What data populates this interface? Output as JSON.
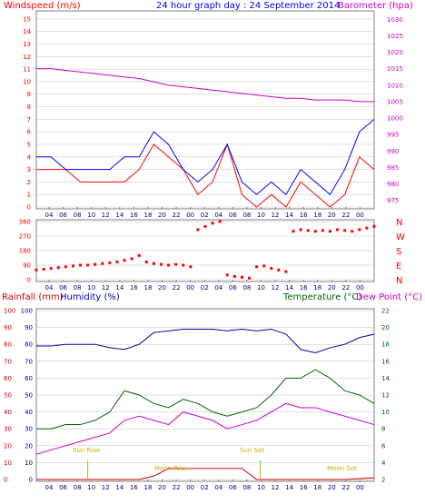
{
  "colors": {
    "wind": "#ff0000",
    "gust_avg": "#0000ff",
    "barometer": "#cc00cc",
    "direction": "#ff0000",
    "rain": "#cc0000",
    "humidity": "#0000aa",
    "temperature": "#006600",
    "dewpoint": "#cc00cc",
    "sun_moon": "#ccaa00",
    "grid": "#c0c0c0",
    "frame": "#808080"
  },
  "header": {
    "windspeed": "Windspeed (m/s)",
    "title": "24 hour graph day : 24 September 2014",
    "barometer": "Barometer (hpa)"
  },
  "bottom_header": {
    "rainfall": "Rainfall (mm)",
    "humidity": "Humidity (%)",
    "temperature": "Temperature (°C)",
    "dewpoint": "Dew Point (°C)"
  },
  "annotations": {
    "sun_rise": "Sun Rise",
    "sun_set": "Sun Set",
    "moon_rise": "Moon Rise",
    "moon_set": "Moon Set"
  },
  "chart_data": [
    {
      "type": "line",
      "panel": "wind_barometer",
      "x_ticks": [
        "04",
        "06",
        "08",
        "10",
        "12",
        "14",
        "16",
        "18",
        "20",
        "22",
        "00",
        "02",
        "04",
        "06",
        "08",
        "10",
        "12",
        "14",
        "16",
        "18",
        "20",
        "22",
        "00"
      ],
      "y_left_ticks": [
        0,
        1,
        2,
        3,
        4,
        5,
        6,
        7,
        8,
        9,
        10,
        11,
        12,
        13,
        14,
        15
      ],
      "y_left_range": [
        0,
        15.5
      ],
      "y_right_ticks": [
        975,
        980,
        985,
        990,
        995,
        1000,
        1005,
        1010,
        1015,
        1020,
        1025,
        1030
      ],
      "y_right_range": [
        973,
        1032
      ],
      "series": [
        {
          "name": "Windspeed",
          "axis": "left",
          "x": [
            0,
            2,
            4,
            6,
            8,
            10,
            12,
            14,
            16,
            18,
            20,
            22,
            24,
            26,
            28,
            30,
            32,
            34,
            36,
            38,
            40,
            42,
            44,
            46
          ],
          "values": [
            3,
            3,
            3,
            2,
            2,
            2,
            2,
            3,
            5,
            4,
            3,
            1,
            2,
            5,
            1,
            0,
            1,
            0,
            2,
            1,
            0,
            1,
            4,
            3
          ]
        },
        {
          "name": "Gust",
          "axis": "left",
          "x": [
            0,
            2,
            4,
            6,
            8,
            10,
            12,
            14,
            16,
            18,
            20,
            22,
            24,
            26,
            28,
            30,
            32,
            34,
            36,
            38,
            40,
            42,
            44,
            46
          ],
          "values": [
            4,
            4,
            3,
            3,
            3,
            3,
            4,
            4,
            6,
            5,
            3,
            2,
            3,
            5,
            2,
            1,
            2,
            1,
            3,
            2,
            1,
            3,
            6,
            7
          ]
        },
        {
          "name": "Barometer",
          "axis": "right",
          "x": [
            0,
            2,
            4,
            6,
            8,
            10,
            12,
            14,
            16,
            18,
            20,
            22,
            24,
            26,
            28,
            30,
            32,
            34,
            36,
            38,
            40,
            42,
            44,
            46
          ],
          "values": [
            1015,
            1015,
            1014.5,
            1014,
            1013.5,
            1013,
            1012.5,
            1012,
            1011,
            1010,
            1009.5,
            1009,
            1008.5,
            1008,
            1007.5,
            1007,
            1006.5,
            1006,
            1006,
            1005.5,
            1005.5,
            1005.5,
            1005,
            1005
          ]
        }
      ]
    },
    {
      "type": "scatter",
      "panel": "wind_direction",
      "x_ticks": [
        "04",
        "06",
        "08",
        "10",
        "12",
        "14",
        "16",
        "18",
        "20",
        "22",
        "00",
        "02",
        "04",
        "06",
        "08",
        "10",
        "12",
        "14",
        "16",
        "18",
        "20",
        "22",
        "00"
      ],
      "y_ticks": [
        0,
        90,
        180,
        270,
        360
      ],
      "y_range": [
        0,
        360
      ],
      "compass_labels": [
        "N",
        "W",
        "S",
        "E",
        "N"
      ],
      "series": [
        {
          "name": "Wind Direction",
          "x": [
            0,
            1,
            2,
            3,
            4,
            5,
            6,
            7,
            8,
            9,
            10,
            11,
            12,
            13,
            14,
            15,
            16,
            17,
            18,
            19,
            20,
            21,
            22,
            23,
            24,
            25,
            26,
            27,
            28,
            29,
            30,
            31,
            32,
            33,
            34,
            35,
            36,
            37,
            38,
            39,
            40,
            41,
            42,
            43,
            44,
            45,
            46
          ],
          "values": [
            60,
            65,
            70,
            75,
            80,
            85,
            90,
            90,
            95,
            100,
            105,
            110,
            120,
            130,
            150,
            110,
            100,
            95,
            90,
            95,
            90,
            80,
            310,
            330,
            350,
            360,
            30,
            20,
            15,
            10,
            80,
            85,
            70,
            60,
            50,
            300,
            310,
            305,
            300,
            305,
            300,
            310,
            305,
            300,
            310,
            320,
            330
          ]
        }
      ]
    },
    {
      "type": "line",
      "panel": "temp_humidity_rain",
      "x_ticks": [
        "04",
        "06",
        "08",
        "10",
        "12",
        "14",
        "16",
        "18",
        "20",
        "22",
        "00",
        "02",
        "04",
        "06",
        "08",
        "10",
        "12",
        "14",
        "16",
        "18",
        "20",
        "22",
        "00"
      ],
      "y_left_ticks": [
        0,
        10,
        20,
        30,
        40,
        50,
        60,
        70,
        80,
        90,
        100
      ],
      "y_left_range": [
        0,
        100
      ],
      "y_right_ticks": [
        2,
        4,
        6,
        8,
        10,
        12,
        14,
        16,
        18,
        20,
        22
      ],
      "y_right_range": [
        2,
        22
      ],
      "series": [
        {
          "name": "Humidity",
          "axis": "left",
          "x": [
            0,
            2,
            4,
            6,
            8,
            10,
            12,
            14,
            16,
            18,
            20,
            22,
            24,
            26,
            28,
            30,
            32,
            34,
            36,
            38,
            40,
            42,
            44,
            46
          ],
          "values": [
            79,
            79,
            80,
            80,
            80,
            78,
            77,
            80,
            87,
            88,
            89,
            89,
            89,
            88,
            89,
            88,
            89,
            86,
            77,
            75,
            78,
            80,
            84,
            86
          ]
        },
        {
          "name": "Temperature",
          "axis": "right",
          "x": [
            0,
            2,
            4,
            6,
            8,
            10,
            12,
            14,
            16,
            18,
            20,
            22,
            24,
            26,
            28,
            30,
            32,
            34,
            36,
            38,
            40,
            42,
            44,
            46
          ],
          "values": [
            8,
            8,
            8.5,
            8.5,
            9,
            10,
            12.5,
            12,
            11,
            10.5,
            11.5,
            11,
            10,
            9.5,
            10,
            10.5,
            12,
            14,
            14,
            15,
            14,
            12.5,
            12,
            11
          ]
        },
        {
          "name": "Dew Point",
          "axis": "right",
          "x": [
            0,
            2,
            4,
            6,
            8,
            10,
            12,
            14,
            16,
            18,
            20,
            22,
            24,
            26,
            28,
            30,
            32,
            34,
            36,
            38,
            40,
            42,
            44,
            46
          ],
          "values": [
            5,
            5.5,
            6,
            6.5,
            7,
            7.5,
            9,
            9.5,
            9,
            8.5,
            10,
            9.5,
            9,
            8,
            8.5,
            9,
            10,
            11,
            10.5,
            10.5,
            10,
            9.5,
            9,
            8.5
          ]
        },
        {
          "name": "Rainfall",
          "axis": "left",
          "x": [
            0,
            2,
            4,
            6,
            8,
            10,
            12,
            14,
            16,
            18,
            20,
            22,
            24,
            26,
            28,
            30,
            32,
            34,
            36,
            38,
            40,
            42,
            44,
            46
          ],
          "values": [
            0,
            0,
            0,
            0,
            0,
            0,
            0,
            0,
            2,
            6.5,
            6.5,
            6.5,
            6.5,
            6.5,
            6.5,
            0,
            0,
            0,
            0,
            0,
            0,
            0,
            0.5,
            1
          ]
        }
      ]
    }
  ]
}
